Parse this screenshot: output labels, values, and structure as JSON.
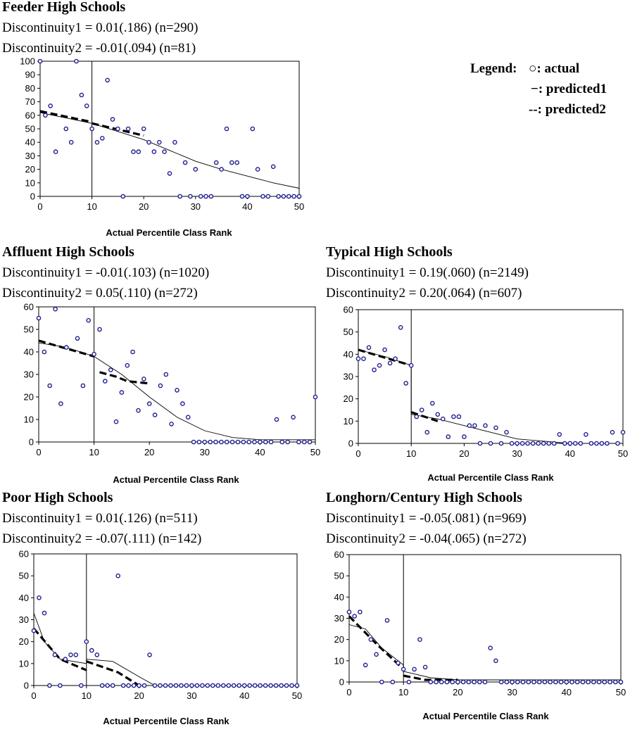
{
  "legend": {
    "title": "Legend:",
    "actual": "○: actual",
    "predicted1": "−: predicted1",
    "predicted2": "--: predicted2"
  },
  "colors": {
    "marker": "#1f1f8f",
    "line": "#000000"
  },
  "chart_data": [
    {
      "type": "scatter",
      "title": "Feeder High Schools",
      "line1": "Discontinuity1 = 0.01(.186) (n=290)",
      "line2": "Discontinuity2 = -0.01(.094) (n=81)",
      "xlabel": "Actual Percentile Class Rank",
      "xlim": [
        0,
        50
      ],
      "ylim": [
        0,
        100
      ],
      "xticks": [
        0,
        10,
        20,
        30,
        40,
        50
      ],
      "yticks": [
        0,
        10,
        20,
        30,
        40,
        50,
        60,
        70,
        80,
        90,
        100
      ],
      "cutoff": 10,
      "actual": [
        [
          0,
          100
        ],
        [
          1,
          60
        ],
        [
          2,
          67
        ],
        [
          3,
          33
        ],
        [
          5,
          50
        ],
        [
          6,
          40
        ],
        [
          7,
          100
        ],
        [
          8,
          75
        ],
        [
          9,
          67
        ],
        [
          10,
          50
        ],
        [
          11,
          40
        ],
        [
          12,
          43
        ],
        [
          13,
          86
        ],
        [
          14,
          57
        ],
        [
          15,
          50
        ],
        [
          16,
          0
        ],
        [
          17,
          50
        ],
        [
          18,
          33
        ],
        [
          19,
          33
        ],
        [
          20,
          50
        ],
        [
          21,
          40
        ],
        [
          22,
          33
        ],
        [
          23,
          40
        ],
        [
          24,
          33
        ],
        [
          25,
          17
        ],
        [
          26,
          40
        ],
        [
          27,
          0
        ],
        [
          28,
          25
        ],
        [
          29,
          0
        ],
        [
          30,
          20
        ],
        [
          31,
          0
        ],
        [
          32,
          0
        ],
        [
          33,
          0
        ],
        [
          34,
          25
        ],
        [
          35,
          20
        ],
        [
          36,
          50
        ],
        [
          37,
          25
        ],
        [
          38,
          25
        ],
        [
          39,
          0
        ],
        [
          40,
          0
        ],
        [
          41,
          50
        ],
        [
          42,
          20
        ],
        [
          43,
          0
        ],
        [
          44,
          0
        ],
        [
          45,
          22
        ],
        [
          46,
          0
        ],
        [
          47,
          0
        ],
        [
          48,
          0
        ],
        [
          49,
          0
        ],
        [
          50,
          0
        ]
      ],
      "predicted1": [
        [
          0,
          62
        ],
        [
          5,
          58
        ],
        [
          10,
          54
        ],
        [
          10,
          54
        ],
        [
          15,
          48
        ],
        [
          20,
          42
        ],
        [
          25,
          34
        ],
        [
          30,
          26
        ],
        [
          35,
          20
        ],
        [
          40,
          15
        ],
        [
          45,
          10
        ],
        [
          50,
          6
        ]
      ],
      "predicted2": [
        [
          0,
          63
        ],
        [
          10,
          55
        ],
        [
          10,
          54
        ],
        [
          20,
          45
        ]
      ]
    },
    {
      "type": "scatter",
      "title": "Affluent High Schools",
      "line1": "Discontinuity1 = -0.01(.103) (n=1020)",
      "line2": "Discontinuity2 = 0.05(.110) (n=272)",
      "xlabel": "Actual Percentile Class Rank",
      "xlim": [
        0,
        50
      ],
      "ylim": [
        0,
        60
      ],
      "xticks": [
        0,
        10,
        20,
        30,
        40,
        50
      ],
      "yticks": [
        0,
        10,
        20,
        30,
        40,
        50,
        60
      ],
      "cutoff": 10,
      "actual": [
        [
          0,
          55
        ],
        [
          1,
          40
        ],
        [
          2,
          25
        ],
        [
          3,
          59
        ],
        [
          4,
          17
        ],
        [
          5,
          42
        ],
        [
          7,
          46
        ],
        [
          8,
          25
        ],
        [
          9,
          54
        ],
        [
          10,
          39
        ],
        [
          11,
          50
        ],
        [
          12,
          27
        ],
        [
          13,
          32
        ],
        [
          14,
          9
        ],
        [
          15,
          22
        ],
        [
          16,
          34
        ],
        [
          17,
          40
        ],
        [
          18,
          14
        ],
        [
          19,
          28
        ],
        [
          20,
          17
        ],
        [
          21,
          12
        ],
        [
          22,
          25
        ],
        [
          23,
          30
        ],
        [
          24,
          8
        ],
        [
          25,
          23
        ],
        [
          26,
          17
        ],
        [
          27,
          11
        ],
        [
          28,
          0
        ],
        [
          29,
          0
        ],
        [
          30,
          0
        ],
        [
          31,
          0
        ],
        [
          32,
          0
        ],
        [
          33,
          0
        ],
        [
          34,
          0
        ],
        [
          35,
          0
        ],
        [
          36,
          0
        ],
        [
          37,
          0
        ],
        [
          38,
          0
        ],
        [
          39,
          0
        ],
        [
          40,
          0
        ],
        [
          41,
          0
        ],
        [
          42,
          0
        ],
        [
          43,
          10
        ],
        [
          44,
          0
        ],
        [
          45,
          0
        ],
        [
          46,
          11
        ],
        [
          47,
          0
        ],
        [
          48,
          0
        ],
        [
          49,
          0
        ],
        [
          50,
          20
        ]
      ],
      "predicted1": [
        [
          0,
          44
        ],
        [
          5,
          42
        ],
        [
          10,
          38
        ],
        [
          10,
          38
        ],
        [
          15,
          30
        ],
        [
          20,
          20
        ],
        [
          25,
          11
        ],
        [
          30,
          5
        ],
        [
          35,
          2
        ],
        [
          40,
          1
        ],
        [
          50,
          1
        ]
      ],
      "predicted2": [
        [
          0,
          45
        ],
        [
          10,
          38
        ],
        [
          11,
          31
        ],
        [
          14,
          29
        ],
        [
          16,
          27
        ],
        [
          20,
          26
        ]
      ]
    },
    {
      "type": "scatter",
      "title": "Typical High Schools",
      "line1": "Discontinuity1 = 0.19(.060) (n=2149)",
      "line2": "Discontinuity2 = 0.20(.064) (n=607)",
      "xlabel": "Actual Percentile Class Rank",
      "xlim": [
        0,
        50
      ],
      "ylim": [
        0,
        60
      ],
      "xticks": [
        0,
        10,
        20,
        30,
        40,
        50
      ],
      "yticks": [
        0,
        10,
        20,
        30,
        40,
        50,
        60
      ],
      "cutoff": 10,
      "actual": [
        [
          0,
          38
        ],
        [
          1,
          38
        ],
        [
          2,
          43
        ],
        [
          3,
          33
        ],
        [
          4,
          35
        ],
        [
          5,
          42
        ],
        [
          6,
          36
        ],
        [
          7,
          38
        ],
        [
          8,
          52
        ],
        [
          9,
          27
        ],
        [
          10,
          35
        ],
        [
          11,
          12
        ],
        [
          12,
          15
        ],
        [
          13,
          5
        ],
        [
          14,
          18
        ],
        [
          15,
          13
        ],
        [
          16,
          11
        ],
        [
          17,
          3
        ],
        [
          18,
          12
        ],
        [
          19,
          12
        ],
        [
          20,
          3
        ],
        [
          21,
          8
        ],
        [
          22,
          8
        ],
        [
          23,
          0
        ],
        [
          24,
          8
        ],
        [
          25,
          0
        ],
        [
          26,
          7
        ],
        [
          27,
          0
        ],
        [
          28,
          5
        ],
        [
          29,
          0
        ],
        [
          30,
          0
        ],
        [
          31,
          0
        ],
        [
          32,
          0
        ],
        [
          33,
          0
        ],
        [
          34,
          0
        ],
        [
          35,
          0
        ],
        [
          36,
          0
        ],
        [
          37,
          0
        ],
        [
          38,
          4
        ],
        [
          39,
          0
        ],
        [
          40,
          0
        ],
        [
          41,
          0
        ],
        [
          42,
          0
        ],
        [
          43,
          4
        ],
        [
          44,
          0
        ],
        [
          45,
          0
        ],
        [
          46,
          0
        ],
        [
          47,
          0
        ],
        [
          48,
          5
        ],
        [
          49,
          0
        ],
        [
          50,
          5
        ]
      ],
      "predicted1": [
        [
          0,
          42
        ],
        [
          5,
          39
        ],
        [
          10,
          35
        ],
        [
          10,
          13
        ],
        [
          15,
          11
        ],
        [
          20,
          8
        ],
        [
          25,
          5
        ],
        [
          30,
          2
        ],
        [
          35,
          1
        ],
        [
          40,
          0
        ],
        [
          50,
          0
        ]
      ],
      "predicted2": [
        [
          0,
          42
        ],
        [
          10,
          35
        ],
        [
          10,
          14
        ],
        [
          15,
          10
        ]
      ]
    },
    {
      "type": "scatter",
      "title": "Poor High Schools",
      "line1": "Discontinuity1 = 0.01(.126) (n=511)",
      "line2": "Discontinuity2 = -0.07(.111) (n=142)",
      "xlabel": "Actual Percentile Class Rank",
      "xlim": [
        0,
        50
      ],
      "ylim": [
        0,
        60
      ],
      "xticks": [
        0,
        10,
        20,
        30,
        40,
        50
      ],
      "yticks": [
        0,
        10,
        20,
        30,
        40,
        50,
        60
      ],
      "cutoff": 10,
      "actual": [
        [
          0,
          25
        ],
        [
          1,
          40
        ],
        [
          2,
          33
        ],
        [
          3,
          0
        ],
        [
          4,
          14
        ],
        [
          5,
          0
        ],
        [
          6,
          12
        ],
        [
          7,
          14
        ],
        [
          8,
          14
        ],
        [
          9,
          0
        ],
        [
          10,
          20
        ],
        [
          11,
          16
        ],
        [
          12,
          14
        ],
        [
          13,
          0
        ],
        [
          14,
          0
        ],
        [
          15,
          0
        ],
        [
          16,
          50
        ],
        [
          17,
          0
        ],
        [
          18,
          0
        ],
        [
          19,
          0
        ],
        [
          20,
          0
        ],
        [
          21,
          0
        ],
        [
          22,
          14
        ],
        [
          23,
          0
        ],
        [
          24,
          0
        ],
        [
          25,
          0
        ],
        [
          26,
          0
        ],
        [
          27,
          0
        ],
        [
          28,
          0
        ],
        [
          29,
          0
        ],
        [
          30,
          0
        ],
        [
          31,
          0
        ],
        [
          32,
          0
        ],
        [
          33,
          0
        ],
        [
          34,
          0
        ],
        [
          35,
          0
        ],
        [
          36,
          0
        ],
        [
          37,
          0
        ],
        [
          38,
          0
        ],
        [
          39,
          0
        ],
        [
          40,
          0
        ],
        [
          41,
          0
        ],
        [
          42,
          0
        ],
        [
          43,
          0
        ],
        [
          44,
          0
        ],
        [
          45,
          0
        ],
        [
          46,
          0
        ],
        [
          47,
          0
        ],
        [
          48,
          0
        ],
        [
          49,
          0
        ],
        [
          50,
          0
        ]
      ],
      "predicted1": [
        [
          0,
          33
        ],
        [
          2,
          20
        ],
        [
          5,
          12
        ],
        [
          10,
          10
        ],
        [
          10,
          12
        ],
        [
          15,
          11
        ],
        [
          20,
          4
        ],
        [
          23,
          0
        ],
        [
          30,
          0
        ],
        [
          50,
          0
        ]
      ],
      "predicted2": [
        [
          0,
          26
        ],
        [
          5,
          12
        ],
        [
          10,
          7
        ],
        [
          10,
          11
        ],
        [
          16,
          6
        ],
        [
          20,
          0
        ]
      ]
    },
    {
      "type": "scatter",
      "title": "Longhorn/Century High Schools",
      "line1": "Discontinuity1 = -0.05(.081) (n=969)",
      "line2": "Discontinuity2 = -0.04(.065) (n=272)",
      "xlabel": "Actual Percentile Class Rank",
      "xlim": [
        0,
        50
      ],
      "ylim": [
        0,
        60
      ],
      "xticks": [
        0,
        10,
        20,
        30,
        40,
        50
      ],
      "yticks": [
        0,
        10,
        20,
        30,
        40,
        50,
        60
      ],
      "cutoff": 10,
      "actual": [
        [
          0,
          33
        ],
        [
          1,
          31
        ],
        [
          2,
          33
        ],
        [
          3,
          8
        ],
        [
          4,
          20
        ],
        [
          5,
          13
        ],
        [
          6,
          0
        ],
        [
          7,
          29
        ],
        [
          8,
          0
        ],
        [
          9,
          9
        ],
        [
          10,
          6
        ],
        [
          11,
          0
        ],
        [
          12,
          6
        ],
        [
          13,
          20
        ],
        [
          14,
          7
        ],
        [
          15,
          0
        ],
        [
          16,
          0
        ],
        [
          17,
          0
        ],
        [
          18,
          0
        ],
        [
          19,
          0
        ],
        [
          20,
          0
        ],
        [
          21,
          0
        ],
        [
          22,
          0
        ],
        [
          23,
          0
        ],
        [
          24,
          0
        ],
        [
          25,
          0
        ],
        [
          26,
          16
        ],
        [
          27,
          10
        ],
        [
          28,
          0
        ],
        [
          29,
          0
        ],
        [
          30,
          0
        ],
        [
          31,
          0
        ],
        [
          32,
          0
        ],
        [
          33,
          0
        ],
        [
          34,
          0
        ],
        [
          35,
          0
        ],
        [
          36,
          0
        ],
        [
          37,
          0
        ],
        [
          38,
          0
        ],
        [
          39,
          0
        ],
        [
          40,
          0
        ],
        [
          41,
          0
        ],
        [
          42,
          0
        ],
        [
          43,
          0
        ],
        [
          44,
          0
        ],
        [
          45,
          0
        ],
        [
          46,
          0
        ],
        [
          47,
          0
        ],
        [
          48,
          0
        ],
        [
          49,
          0
        ],
        [
          50,
          0
        ]
      ],
      "predicted1": [
        [
          0,
          27
        ],
        [
          3,
          25
        ],
        [
          6,
          16
        ],
        [
          10,
          8
        ],
        [
          10,
          5
        ],
        [
          15,
          2
        ],
        [
          20,
          1
        ],
        [
          30,
          1
        ],
        [
          50,
          1
        ]
      ],
      "predicted2": [
        [
          0,
          31
        ],
        [
          5,
          18
        ],
        [
          10,
          6
        ],
        [
          10,
          3
        ],
        [
          14,
          1
        ],
        [
          20,
          1
        ]
      ]
    }
  ]
}
